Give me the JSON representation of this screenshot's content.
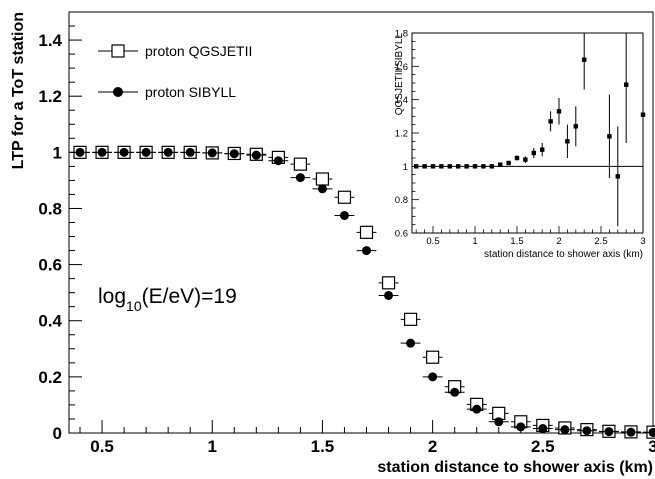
{
  "chart_data": [
    {
      "type": "scatter",
      "xlabel": "station distance to shower axis (km)",
      "ylabel": "LTP for a ToT station",
      "xlim": [
        0.35,
        3.0
      ],
      "ylim": [
        0,
        1.5
      ],
      "x_ticks": [
        "0.5",
        "1",
        "1.5",
        "2",
        "2.5",
        "3"
      ],
      "y_ticks": [
        "0",
        "0.2",
        "0.4",
        "0.6",
        "0.8",
        "1",
        "1.2",
        "1.4"
      ],
      "x_tick_values": [
        0.5,
        1,
        1.5,
        2,
        2.5,
        3
      ],
      "y_tick_values": [
        0,
        0.2,
        0.4,
        0.6,
        0.8,
        1,
        1.2,
        1.4
      ],
      "annotation": {
        "main": "log",
        "sub": "10",
        "rest": "(E/eV)=19"
      },
      "legend_position": "top-left",
      "grid": false,
      "bin_half_width": 0.045,
      "series": [
        {
          "name": "proton QGSJETII",
          "marker": "open-square",
          "x": [
            0.4,
            0.5,
            0.6,
            0.7,
            0.8,
            0.9,
            1.0,
            1.1,
            1.2,
            1.3,
            1.4,
            1.5,
            1.6,
            1.7,
            1.8,
            1.9,
            2.0,
            2.1,
            2.2,
            2.3,
            2.4,
            2.5,
            2.6,
            2.7,
            2.8,
            2.9,
            3.0
          ],
          "y": [
            1.0,
            1.0,
            1.0,
            1.0,
            1.0,
            1.0,
            0.998,
            0.996,
            0.993,
            0.982,
            0.958,
            0.905,
            0.84,
            0.715,
            0.535,
            0.405,
            0.27,
            0.165,
            0.102,
            0.07,
            0.04,
            0.027,
            0.018,
            0.012,
            0.006,
            0.004,
            0.003
          ]
        },
        {
          "name": "proton SIBYLL",
          "marker": "filled-circle",
          "x": [
            0.4,
            0.5,
            0.6,
            0.7,
            0.8,
            0.9,
            1.0,
            1.1,
            1.2,
            1.3,
            1.4,
            1.5,
            1.6,
            1.7,
            1.8,
            1.9,
            2.0,
            2.1,
            2.2,
            2.3,
            2.4,
            2.5,
            2.6,
            2.7,
            2.8,
            2.9,
            3.0
          ],
          "y": [
            1.0,
            1.0,
            1.0,
            1.0,
            1.0,
            1.0,
            0.998,
            0.995,
            0.99,
            0.97,
            0.91,
            0.87,
            0.775,
            0.65,
            0.49,
            0.32,
            0.2,
            0.145,
            0.085,
            0.04,
            0.022,
            0.016,
            0.012,
            0.008,
            0.005,
            0.003,
            0.002
          ]
        }
      ]
    },
    {
      "type": "scatter",
      "xlabel": "station distance to shower axis (km)",
      "ylabel": "QGSJETII/SIBYLL",
      "xlim": [
        0.25,
        3.0
      ],
      "ylim": [
        0.6,
        1.8
      ],
      "x_ticks": [
        "0.5",
        "1",
        "1.5",
        "2",
        "2.5",
        "3"
      ],
      "y_ticks": [
        "0.6",
        "0.8",
        "1",
        "1.2",
        "1.4",
        "1.6",
        "1.8"
      ],
      "x_tick_values": [
        0.5,
        1,
        1.5,
        2,
        2.5,
        3
      ],
      "y_tick_values": [
        0.6,
        0.8,
        1,
        1.2,
        1.4,
        1.6,
        1.8
      ],
      "reference_line": 1.0,
      "grid": false,
      "series": [
        {
          "marker": "small-filled-square",
          "x": [
            0.3,
            0.4,
            0.5,
            0.6,
            0.7,
            0.8,
            0.9,
            1.0,
            1.1,
            1.2,
            1.3,
            1.4,
            1.5,
            1.6,
            1.7,
            1.8,
            1.9,
            2.0,
            2.1,
            2.2,
            2.3,
            2.6,
            2.7,
            2.8,
            3.0
          ],
          "y": [
            1.0,
            1.0,
            1.0,
            1.0,
            1.0,
            1.0,
            1.0,
            1.0,
            1.0,
            1.0,
            1.01,
            1.02,
            1.05,
            1.04,
            1.08,
            1.1,
            1.27,
            1.33,
            1.15,
            1.24,
            1.64,
            1.18,
            0.94,
            1.49,
            1.31
          ],
          "err": [
            0.005,
            0.005,
            0.005,
            0.005,
            0.005,
            0.005,
            0.005,
            0.005,
            0.005,
            0.005,
            0.01,
            0.01,
            0.015,
            0.02,
            0.03,
            0.04,
            0.06,
            0.08,
            0.1,
            0.12,
            0.18,
            0.25,
            0.3,
            0.35,
            0.45
          ]
        }
      ]
    }
  ]
}
